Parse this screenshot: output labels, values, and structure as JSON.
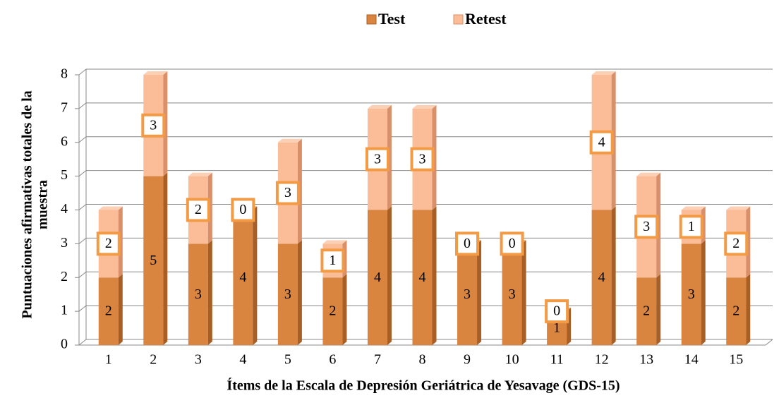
{
  "chart_data": {
    "type": "bar",
    "stacked": true,
    "y_label": [
      "Puntuaciones afirmativas  totales de la",
      "muestra"
    ],
    "x_label": "Ítems de la Escala de Depresión Geriátrica de Yesavage (GDS-15)",
    "categories": [
      "1",
      "2",
      "3",
      "4",
      "5",
      "6",
      "7",
      "8",
      "9",
      "10",
      "11",
      "12",
      "13",
      "14",
      "15"
    ],
    "series": [
      {
        "name": "Test",
        "color": "#d9843f",
        "values": [
          2,
          5,
          3,
          4,
          3,
          2,
          4,
          4,
          3,
          3,
          1,
          4,
          2,
          3,
          2
        ]
      },
      {
        "name": "Retest",
        "color": "#fbbd98",
        "values": [
          2,
          3,
          2,
          0,
          3,
          1,
          3,
          3,
          0,
          0,
          0,
          4,
          3,
          1,
          2
        ]
      }
    ],
    "ylim": [
      0,
      8
    ],
    "yticks": [
      0,
      1,
      2,
      3,
      4,
      5,
      6,
      7,
      8
    ],
    "grid": true,
    "legend": "top"
  }
}
